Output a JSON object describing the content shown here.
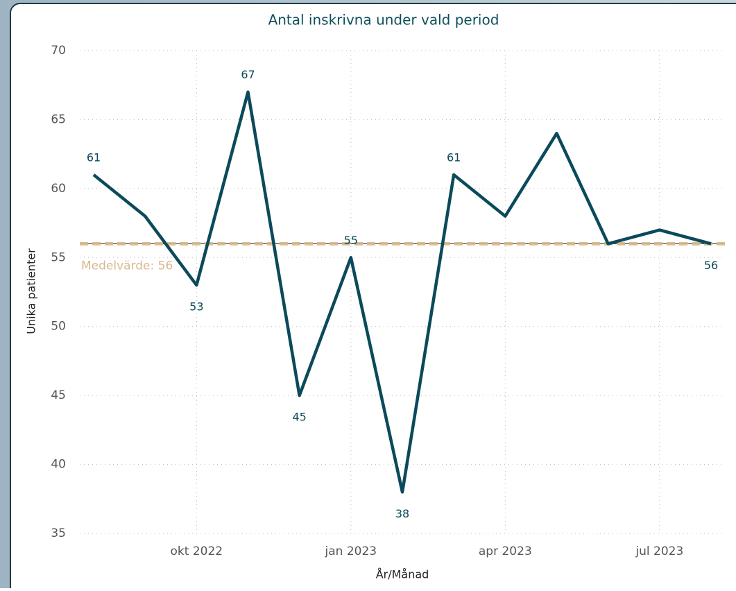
{
  "chart_data": {
    "type": "line",
    "title": "Antal inskrivna under vald period",
    "x_label": "År/Månad",
    "y_label": "Unika patienter",
    "x": [
      "2022-08",
      "2022-09",
      "2022-10",
      "2022-11",
      "2022-12",
      "2023-01",
      "2023-02",
      "2023-03",
      "2023-04",
      "2023-05",
      "2023-06",
      "2023-07",
      "2023-08"
    ],
    "xlim": [
      "2022-08",
      "2023-08"
    ],
    "xticks": [
      {
        "value": "2022-10",
        "label": "okt 2022"
      },
      {
        "value": "2023-01",
        "label": "jan 2023"
      },
      {
        "value": "2023-04",
        "label": "apr 2023"
      },
      {
        "value": "2023-07",
        "label": "jul 2023"
      }
    ],
    "ylim": [
      35,
      70
    ],
    "yticks": [
      35,
      40,
      45,
      50,
      55,
      60,
      65,
      70
    ],
    "grid": true,
    "series": [
      {
        "name": "Unika patienter",
        "color": "#0b4a5a",
        "values": [
          61,
          58,
          53,
          67,
          45,
          55,
          38,
          61,
          58,
          64,
          56,
          57,
          56
        ],
        "value_labels": [
          "61",
          null,
          "53",
          "67",
          "45",
          "55",
          "38",
          "61",
          null,
          null,
          null,
          null,
          "56"
        ]
      }
    ],
    "reference_line": {
      "value": 56,
      "label": "Medelvärde: 56",
      "color": "#d9b98a"
    }
  }
}
